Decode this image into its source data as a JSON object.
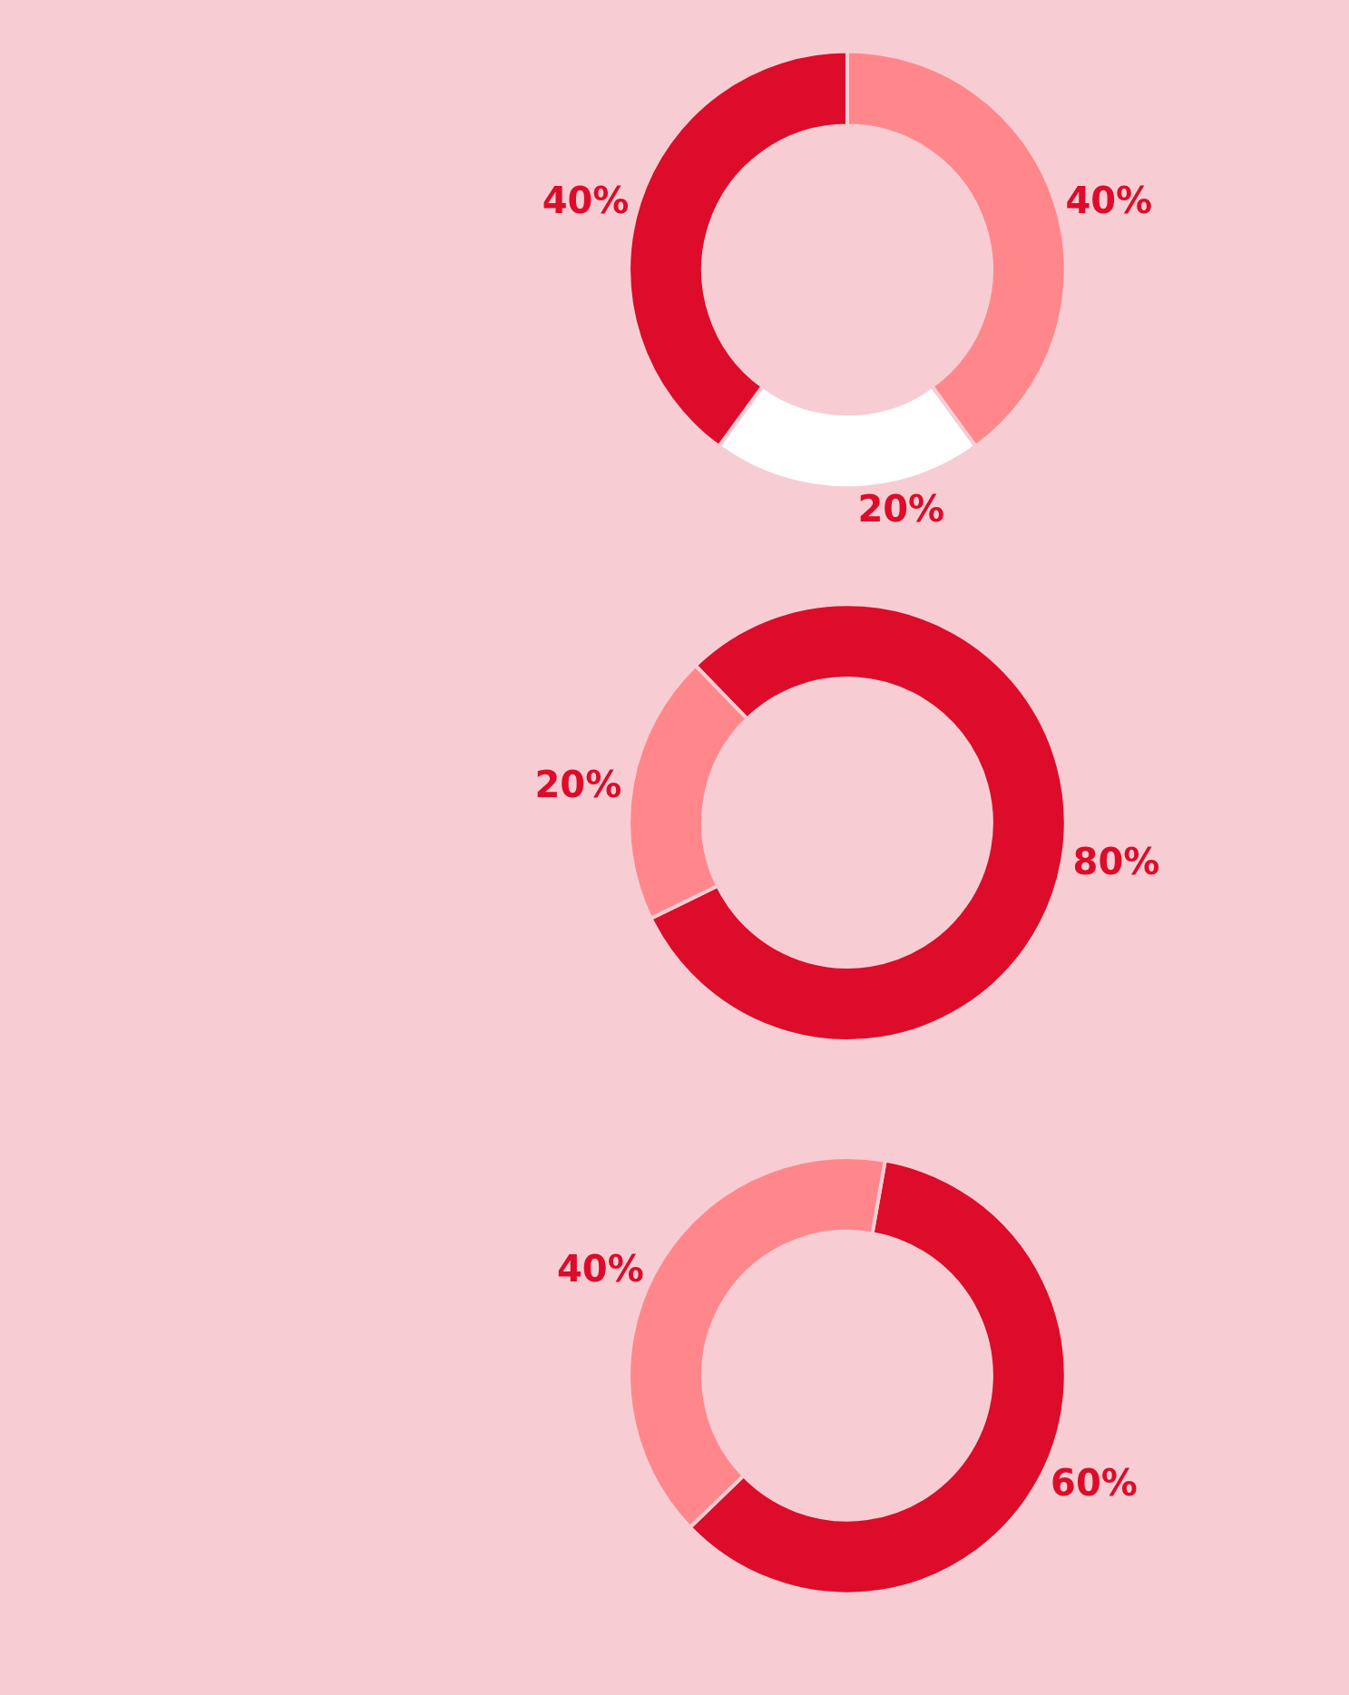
{
  "chart_data": [
    {
      "type": "donut",
      "categories": [
        null,
        null,
        null
      ],
      "values": [
        40,
        20,
        40
      ],
      "colors": [
        "#ff878c",
        "#ffffff",
        "#dc0c2a"
      ],
      "value_labels": [
        "40%",
        "20%",
        "40%"
      ]
    },
    {
      "type": "donut",
      "categories": [
        null,
        null
      ],
      "values": [
        80,
        20
      ],
      "colors": [
        "#dc0c2a",
        "#ff878c"
      ],
      "value_labels": [
        "80%",
        "20%"
      ]
    },
    {
      "type": "donut",
      "categories": [
        null,
        null
      ],
      "values": [
        60,
        40
      ],
      "colors": [
        "#dc0c2a",
        "#ff878c"
      ],
      "value_labels": [
        "60%",
        "40%"
      ]
    }
  ]
}
